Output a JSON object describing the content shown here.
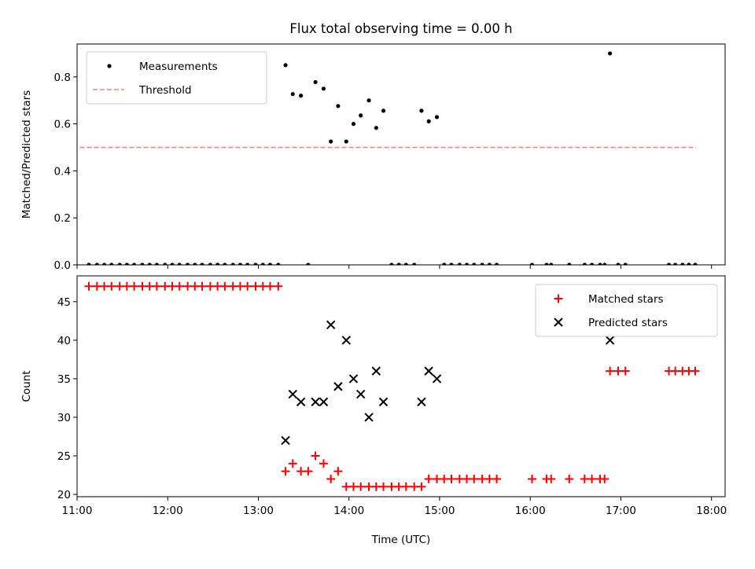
{
  "figure": {
    "title": "Flux total observing time = 0.00 h",
    "xlabel": "Time (UTC)",
    "colors": {
      "measurement": "#000000",
      "threshold": "#ff7f7f",
      "matched": "#ff0000",
      "predicted": "#000000"
    }
  },
  "chart_data": [
    {
      "type": "scatter",
      "title": "Flux total observing time = 0.00 h",
      "xlabel": "",
      "ylabel": "Matched/Predicted stars",
      "xlim": [
        11.0,
        18.15
      ],
      "ylim": [
        0.0,
        0.94
      ],
      "xticks": [
        11,
        12,
        13,
        14,
        15,
        16,
        17,
        18
      ],
      "xtick_labels": [],
      "yticks": [
        0.0,
        0.2,
        0.4,
        0.6,
        0.8
      ],
      "ytick_labels": [
        "0.0",
        "0.2",
        "0.4",
        "0.6",
        "0.8"
      ],
      "legend": {
        "position": "top-left",
        "entries": [
          {
            "label": "Measurements",
            "marker": "dot",
            "color": "#000000"
          },
          {
            "label": "Threshold",
            "marker": "dashed-line",
            "color": "#ff7f7f"
          }
        ]
      },
      "threshold": {
        "name": "Threshold",
        "y": 0.5,
        "x": [
          11.03,
          17.83
        ]
      },
      "series": [
        {
          "name": "Measurements",
          "marker": "dot",
          "x": [
            11.13,
            11.22,
            11.3,
            11.38,
            11.47,
            11.55,
            11.63,
            11.72,
            11.8,
            11.88,
            11.97,
            12.05,
            12.13,
            12.22,
            12.3,
            12.38,
            12.47,
            12.55,
            12.63,
            12.72,
            12.8,
            12.88,
            12.97,
            13.05,
            13.13,
            13.22,
            13.3,
            13.38,
            13.47,
            13.55,
            13.63,
            13.72,
            13.8,
            13.88,
            13.97,
            14.05,
            14.13,
            14.22,
            14.3,
            14.38,
            14.47,
            14.55,
            14.63,
            14.72,
            14.8,
            14.88,
            14.97,
            15.05,
            15.13,
            15.22,
            15.3,
            15.38,
            15.47,
            15.55,
            15.63,
            16.02,
            16.18,
            16.23,
            16.43,
            16.6,
            16.68,
            16.77,
            16.82,
            16.88,
            16.97,
            17.05,
            17.53,
            17.6,
            17.68,
            17.75,
            17.82
          ],
          "y": [
            0,
            0,
            0,
            0,
            0,
            0,
            0,
            0,
            0,
            0,
            0,
            0,
            0,
            0,
            0,
            0,
            0,
            0,
            0,
            0,
            0,
            0,
            0,
            0,
            0,
            0,
            0.85,
            0.727,
            0.72,
            0,
            0.778,
            0.75,
            0.525,
            0.676,
            0.525,
            0.6,
            0.636,
            0.7,
            0.583,
            0.656,
            0,
            0,
            0,
            0,
            0.656,
            0.611,
            0.629,
            0,
            0,
            0,
            0,
            0,
            0,
            0,
            0,
            0,
            0,
            0,
            0,
            0,
            0,
            0,
            0,
            0.9,
            0,
            0,
            0,
            0,
            0,
            0,
            0
          ]
        }
      ]
    },
    {
      "type": "scatter",
      "title": "",
      "xlabel": "Time (UTC)",
      "ylabel": "Count",
      "xlim": [
        11.0,
        18.15
      ],
      "ylim": [
        19.7,
        48.35
      ],
      "xticks": [
        11,
        12,
        13,
        14,
        15,
        16,
        17,
        18
      ],
      "xtick_labels": [
        "11:00",
        "12:00",
        "13:00",
        "14:00",
        "15:00",
        "16:00",
        "17:00",
        "18:00"
      ],
      "yticks": [
        20,
        25,
        30,
        35,
        40,
        45
      ],
      "ytick_labels": [
        "20",
        "25",
        "30",
        "35",
        "40",
        "45"
      ],
      "legend": {
        "position": "top-right",
        "entries": [
          {
            "label": "Matched stars",
            "marker": "plus",
            "color": "#ff0000"
          },
          {
            "label": "Predicted stars",
            "marker": "x",
            "color": "#000000"
          }
        ]
      },
      "series": [
        {
          "name": "Matched stars",
          "marker": "plus",
          "x": [
            11.13,
            11.22,
            11.3,
            11.38,
            11.47,
            11.55,
            11.63,
            11.72,
            11.8,
            11.88,
            11.97,
            12.05,
            12.13,
            12.22,
            12.3,
            12.38,
            12.47,
            12.55,
            12.63,
            12.72,
            12.8,
            12.88,
            12.97,
            13.05,
            13.13,
            13.22,
            13.3,
            13.38,
            13.47,
            13.55,
            13.63,
            13.72,
            13.8,
            13.88,
            13.97,
            14.05,
            14.13,
            14.22,
            14.3,
            14.38,
            14.47,
            14.55,
            14.63,
            14.72,
            14.8,
            14.88,
            14.97,
            15.05,
            15.13,
            15.22,
            15.3,
            15.38,
            15.47,
            15.55,
            15.63,
            16.02,
            16.18,
            16.23,
            16.43,
            16.6,
            16.68,
            16.77,
            16.82,
            16.88,
            16.97,
            17.05,
            17.53,
            17.6,
            17.68,
            17.75,
            17.82
          ],
          "y": [
            47,
            47,
            47,
            47,
            47,
            47,
            47,
            47,
            47,
            47,
            47,
            47,
            47,
            47,
            47,
            47,
            47,
            47,
            47,
            47,
            47,
            47,
            47,
            47,
            47,
            47,
            23,
            24,
            23,
            23,
            25,
            24,
            22,
            23,
            21,
            21,
            21,
            21,
            21,
            21,
            21,
            21,
            21,
            21,
            21,
            22,
            22,
            22,
            22,
            22,
            22,
            22,
            22,
            22,
            22,
            22,
            22,
            22,
            22,
            22,
            22,
            22,
            22,
            36,
            36,
            36,
            36,
            36,
            36,
            36,
            36
          ]
        },
        {
          "name": "Predicted stars",
          "marker": "x",
          "x": [
            13.3,
            13.38,
            13.47,
            13.63,
            13.72,
            13.8,
            13.88,
            13.97,
            14.05,
            14.13,
            14.22,
            14.3,
            14.38,
            14.8,
            14.88,
            14.97,
            16.88
          ],
          "y": [
            27,
            33,
            32,
            32,
            32,
            42,
            34,
            40,
            35,
            33,
            30,
            36,
            32,
            32,
            36,
            35,
            40
          ]
        }
      ]
    }
  ]
}
